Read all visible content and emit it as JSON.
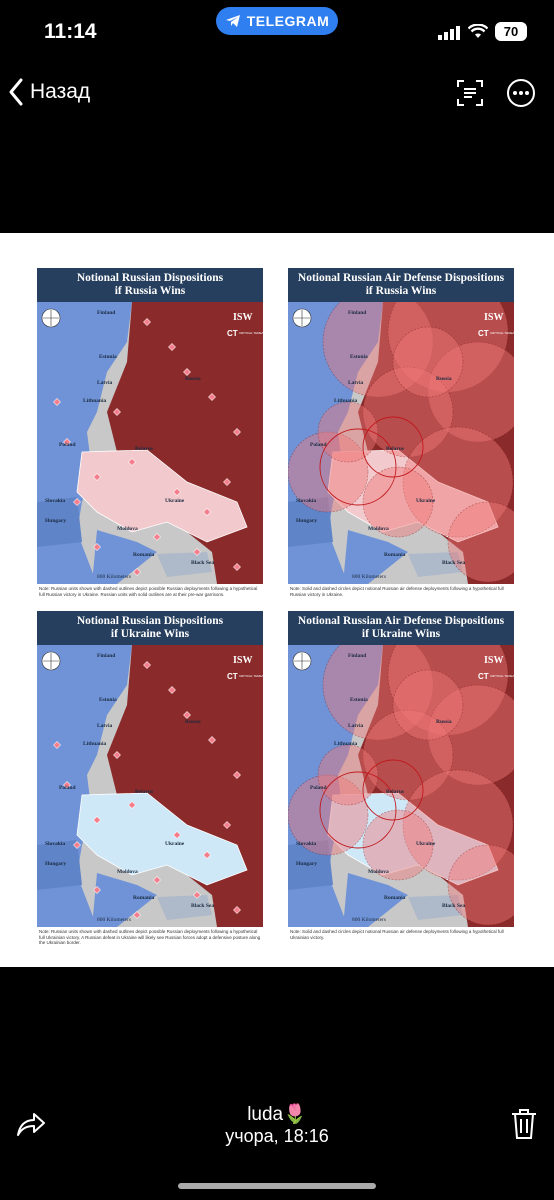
{
  "status_bar": {
    "time": "11:14",
    "app_pill": "TELEGRAM",
    "battery": "70"
  },
  "nav": {
    "back_label": "Назад"
  },
  "maps": [
    {
      "title_line1": "Notional Russian Dispositions",
      "title_line2": "if Russia Wins",
      "note": "Note: Russian units shown with dashed outlines depict possible Russian deployments following a hypothetical full Russian victory in Ukraine. Russian units with solid outlines are at their pre-war garrisons.",
      "labels": [
        "Finland",
        "Estonia",
        "Latvia",
        "Lithuania",
        "Poland",
        "Belarus",
        "Russia",
        "Ukraine",
        "Slovakia",
        "Hungary",
        "Moldova",
        "Romania",
        "Black Sea"
      ]
    },
    {
      "title_line1": "Notional Russian Air Defense Dispositions",
      "title_line2": "if Russia Wins",
      "note": "Note: Solid and dashed circles depict notional Russian air defense deployments following a hypothetical full Russian victory in Ukraine.",
      "labels": [
        "Finland",
        "Estonia",
        "Latvia",
        "Lithuania",
        "Poland",
        "Belarus",
        "Russia",
        "Ukraine",
        "Slovakia",
        "Hungary",
        "Moldova",
        "Romania",
        "Black Sea"
      ]
    },
    {
      "title_line1": "Notional Russian Dispositions",
      "title_line2": "if Ukraine Wins",
      "note": "Note: Russian units shown with dashed outlines depict possible Russian deployments following a hypothetical full Ukrainian victory. A Russian defeat in Ukraine will likely see Russian forces adopt a defensive posture along the Ukrainian border.",
      "labels": [
        "Finland",
        "Estonia",
        "Latvia",
        "Lithuania",
        "Poland",
        "Belarus",
        "Russia",
        "Ukraine",
        "Slovakia",
        "Hungary",
        "Moldova",
        "Romania",
        "Black Sea"
      ]
    },
    {
      "title_line1": "Notional Russian Air Defense Dispositions",
      "title_line2": "if Ukraine Wins",
      "note": "Note: Solid and dashed circles depict notional Russian air defense deployments following a hypothetical full Ukrainian victory.",
      "labels": [
        "Finland",
        "Estonia",
        "Latvia",
        "Lithuania",
        "Poland",
        "Belarus",
        "Russia",
        "Ukraine",
        "Slovakia",
        "Hungary",
        "Moldova",
        "Romania",
        "Black Sea"
      ]
    }
  ],
  "logo": {
    "isw": "ISW",
    "ct": "CT",
    "ct_text": "CRITICAL THREATS"
  },
  "scale_label": "800 Kilometers",
  "footer": {
    "sender": "luda🌷",
    "timestamp": "учора, 18:16"
  },
  "colors": {
    "russia": "#8b2a2a",
    "nato": "#6f93d6",
    "ukraine_light": "#cfe8f7",
    "ukraine_occupied": "#f2c9cc",
    "title_bar": "#263f5e",
    "telegram": "#2f7ff0"
  }
}
